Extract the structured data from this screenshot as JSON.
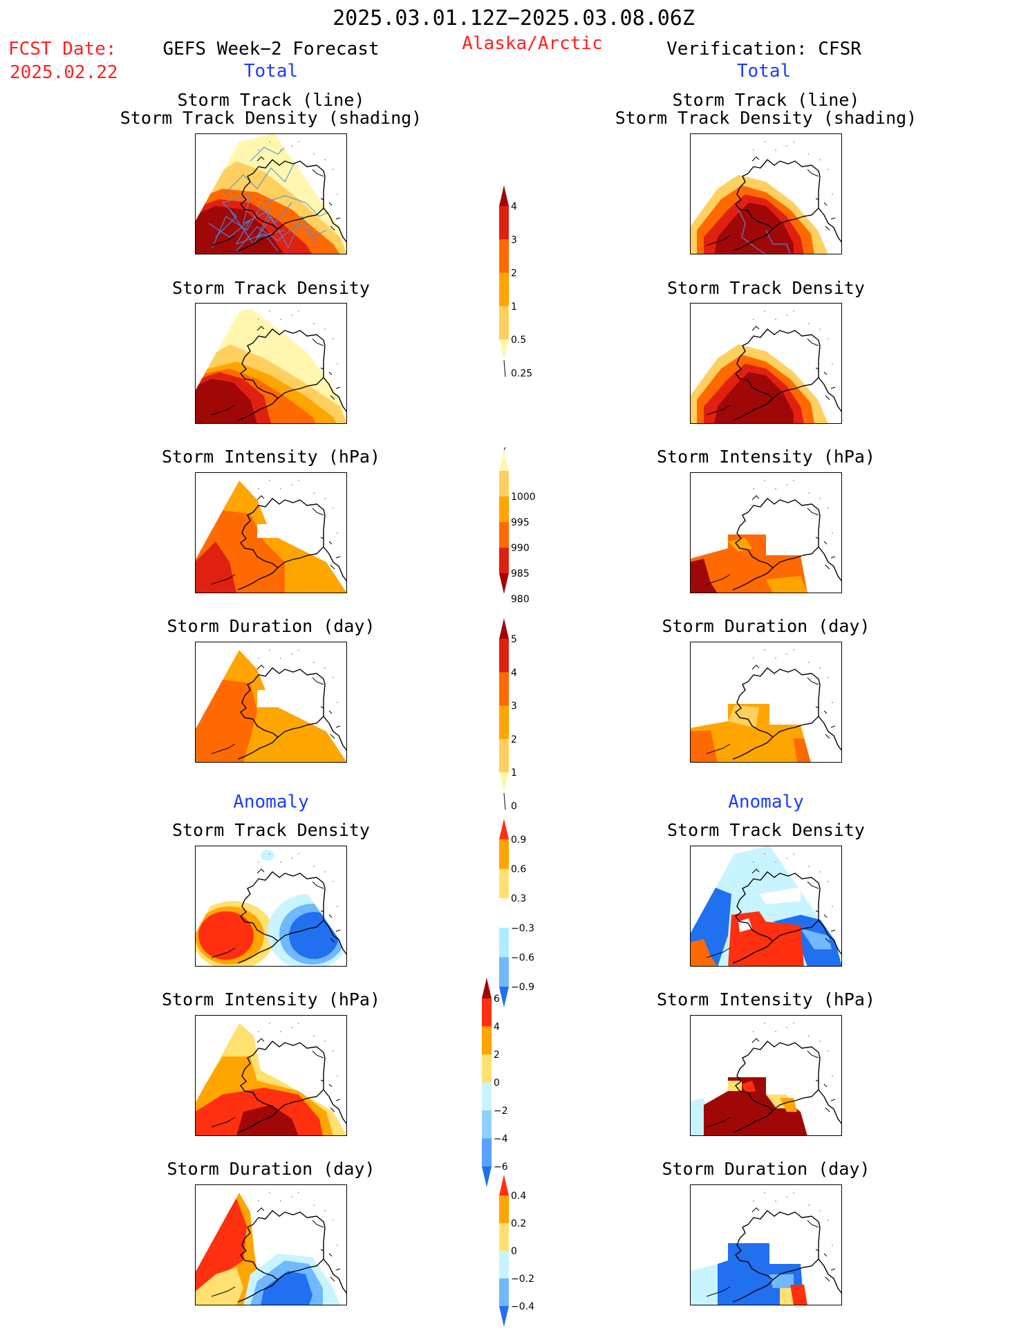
{
  "header": {
    "title": "2025.03.01.12Z−2025.03.08.06Z",
    "fcst_label": "FCST Date:",
    "fcst_date": "2025.02.22",
    "forecast_title": "GEFS Week−2 Forecast",
    "region": "Alaska/Arctic",
    "verification_title": "Verification: CFSR"
  },
  "sections": {
    "total": "Total",
    "anomaly": "Anomaly"
  },
  "panel_titles": {
    "track_line": "Storm Track (line)",
    "track_shading": "Storm Track Density (shading)",
    "density": "Storm Track Density",
    "intensity": "Storm Intensity (hPa)",
    "duration": "Storm Duration (day)"
  },
  "colorbars": {
    "density_total": {
      "ticks": [
        "0.25",
        "0.5",
        "1",
        "2",
        "3",
        "4"
      ],
      "colors": [
        "#fff7b0",
        "#ffd060",
        "#ffa500",
        "#ff6a00",
        "#e02010",
        "#a00808"
      ]
    },
    "intensity_total": {
      "ticks": [
        "1000",
        "995",
        "990",
        "985",
        "980"
      ],
      "colors": [
        "#fff7b0",
        "#ffd060",
        "#ffa500",
        "#ff6a00",
        "#e02010",
        "#a00808"
      ]
    },
    "duration_total": {
      "ticks": [
        "0",
        "1",
        "2",
        "3",
        "4",
        "5"
      ],
      "colors": [
        "#fff7b0",
        "#ffd060",
        "#ffa500",
        "#ff6a00",
        "#e02010",
        "#a00808"
      ]
    },
    "density_anom": {
      "ticks": [
        "0.9",
        "0.6",
        "0.3",
        "−0.3",
        "−0.6",
        "−0.9"
      ],
      "colors": [
        "#ff3010",
        "#ffa500",
        "#ffe070",
        "#ffffff",
        "#b0ecff",
        "#70b8ff",
        "#2070f0"
      ]
    },
    "intensity_anom": {
      "ticks": [
        "6",
        "4",
        "2",
        "0",
        "−2",
        "−4",
        "−6"
      ],
      "colors": [
        "#a00808",
        "#ff3010",
        "#ffa500",
        "#ffe070",
        "#c8f4ff",
        "#90d0ff",
        "#5aa0ff",
        "#2070f0"
      ]
    },
    "duration_anom": {
      "ticks": [
        "0.4",
        "0.2",
        "0",
        "−0.2",
        "−0.4"
      ],
      "colors": [
        "#ff3010",
        "#ffa500",
        "#ffe070",
        "#c8f4ff",
        "#70b8ff",
        "#2070f0"
      ]
    }
  }
}
